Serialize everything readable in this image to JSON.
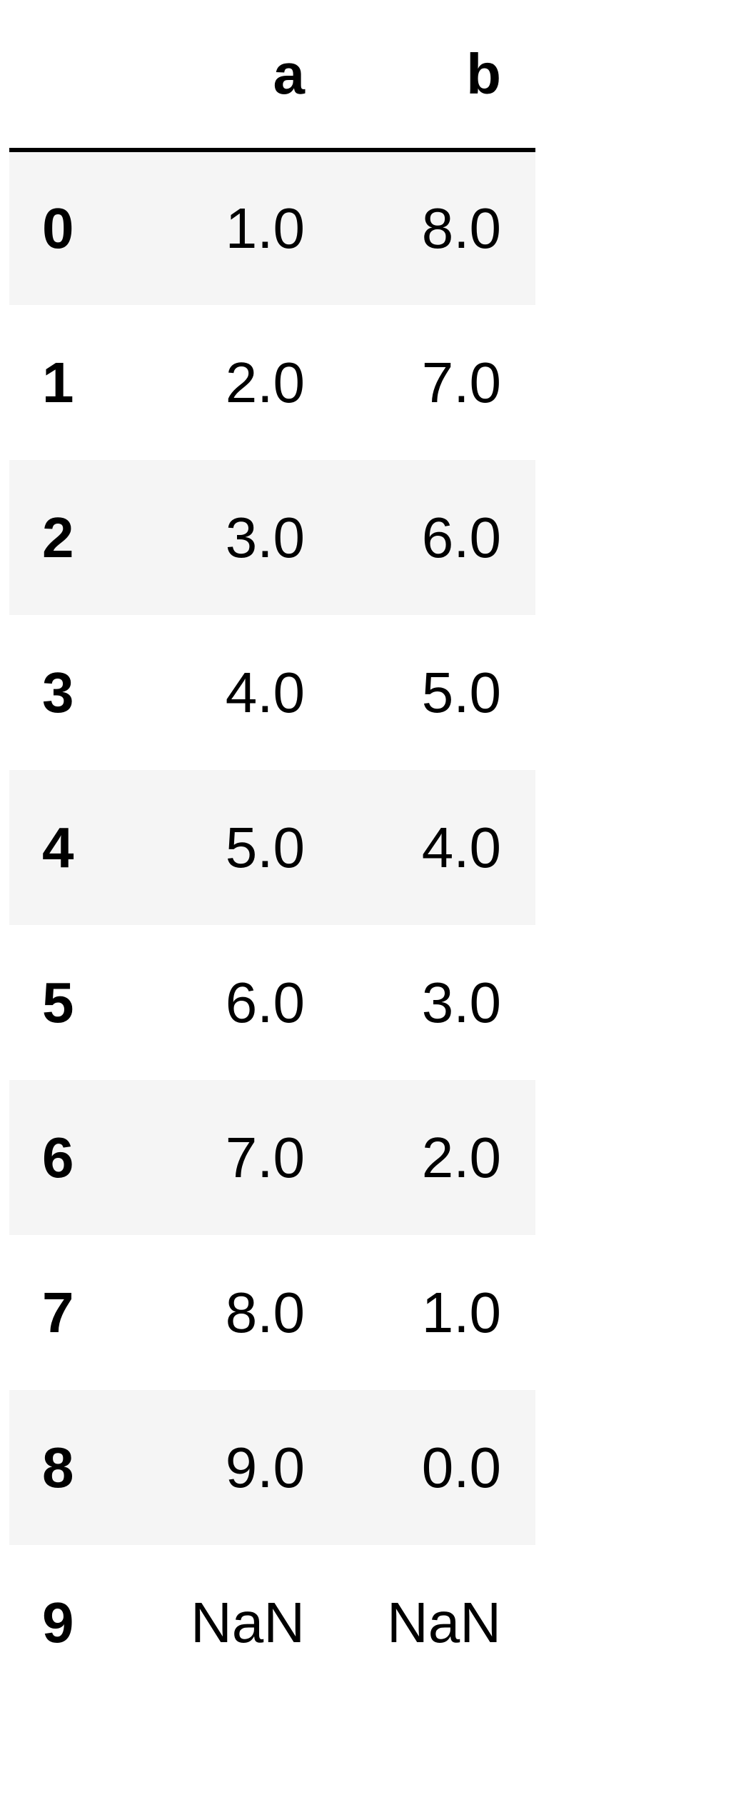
{
  "table": {
    "index_header": "",
    "columns": [
      "a",
      "b"
    ],
    "rows": [
      {
        "index": "0",
        "a": "1.0",
        "b": "8.0"
      },
      {
        "index": "1",
        "a": "2.0",
        "b": "7.0"
      },
      {
        "index": "2",
        "a": "3.0",
        "b": "6.0"
      },
      {
        "index": "3",
        "a": "4.0",
        "b": "5.0"
      },
      {
        "index": "4",
        "a": "5.0",
        "b": "4.0"
      },
      {
        "index": "5",
        "a": "6.0",
        "b": "3.0"
      },
      {
        "index": "6",
        "a": "7.0",
        "b": "2.0"
      },
      {
        "index": "7",
        "a": "8.0",
        "b": "1.0"
      },
      {
        "index": "8",
        "a": "9.0",
        "b": "0.0"
      },
      {
        "index": "9",
        "a": "NaN",
        "b": "NaN"
      }
    ]
  },
  "colors": {
    "striped_row": "#f5f5f5",
    "header_rule": "#000000"
  }
}
